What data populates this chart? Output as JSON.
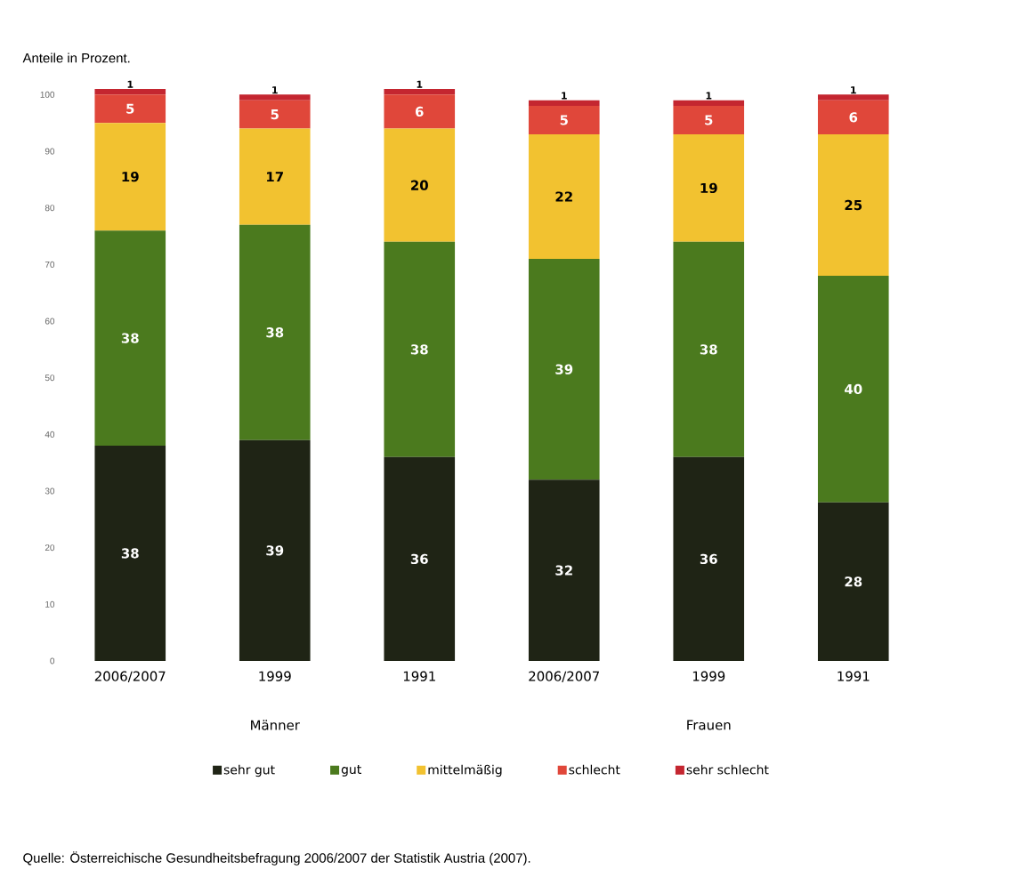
{
  "chart_data": {
    "type": "bar",
    "title": "Anteile in Prozent.",
    "categories": [
      "2006/2007",
      "1999",
      "1991",
      "2006/2007",
      "1999",
      "1991"
    ],
    "stacked": true,
    "data_labels": true,
    "legend": "bottom",
    "ylim": [
      0,
      101
    ],
    "yticks": [
      0,
      10,
      20,
      30,
      40,
      50,
      60,
      70,
      80,
      90,
      100
    ],
    "series": [
      {
        "name": "sehr gut",
        "color": "#1f2415",
        "values": [
          38,
          39,
          36,
          32,
          36,
          28
        ]
      },
      {
        "name": "gut",
        "color": "#4b7a1e",
        "values": [
          38,
          38,
          38,
          39,
          38,
          40
        ]
      },
      {
        "name": "mittelmäßig",
        "color": "#f2c230",
        "values": [
          19,
          17,
          20,
          22,
          19,
          25
        ]
      },
      {
        "name": "schlecht",
        "color": "#e0473a",
        "values": [
          5,
          5,
          6,
          5,
          5,
          6
        ]
      },
      {
        "name": "sehr schlecht",
        "color": "#c42630",
        "values": [
          1,
          1,
          1,
          1,
          1,
          1
        ]
      }
    ],
    "annotations": [
      "Männer",
      "Frauen",
      "Quelle: Österreichische Gesundheitsbefragung 2006/2007 der Statistik Austria (2007)."
    ]
  }
}
